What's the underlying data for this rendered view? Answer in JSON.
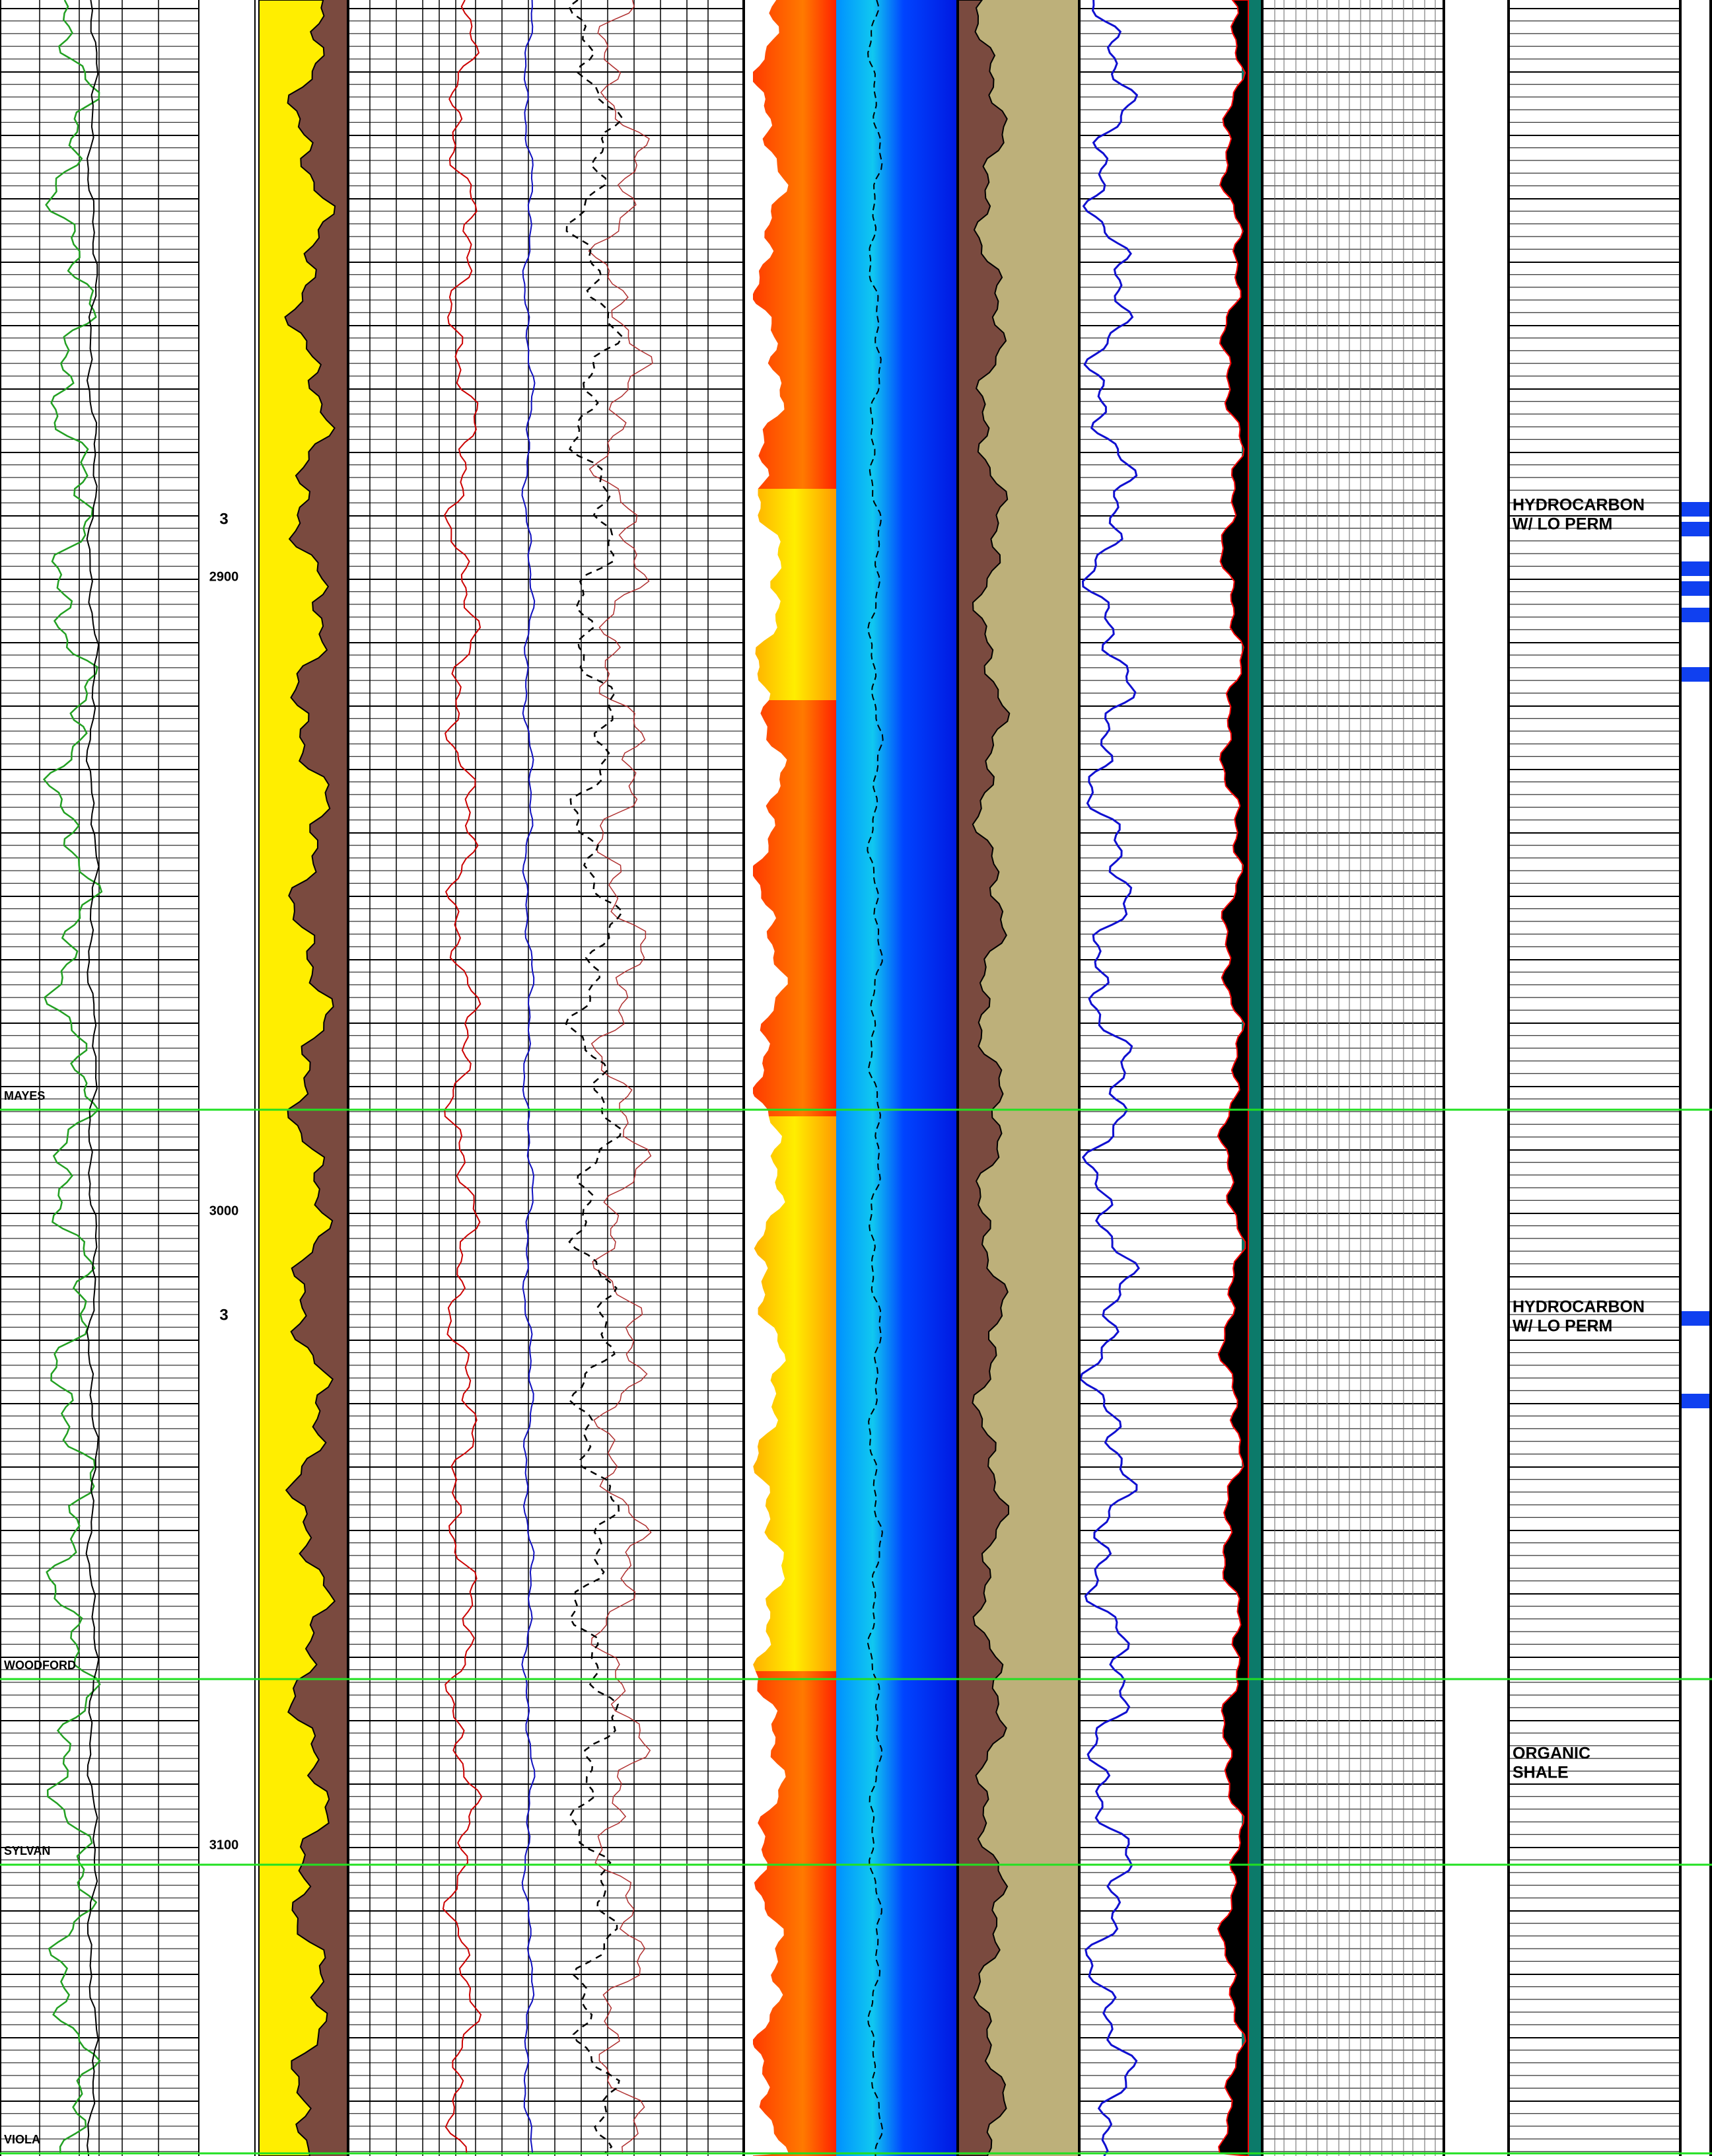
{
  "depth_ticks": [
    2900,
    3000,
    3100
  ],
  "zone_labels": [
    "3",
    "3"
  ],
  "formation_tops": [
    "MAYES",
    "WOODFORD",
    "SYLVAN",
    "VIOLA"
  ],
  "annotations": [
    {
      "lines": [
        "HYDROCARBON",
        "W/ LO PERM"
      ]
    },
    {
      "lines": [
        "HYDROCARBON",
        "W/ LO PERM"
      ]
    },
    {
      "lines": [
        "ORGANIC",
        "SHALE"
      ]
    }
  ]
}
